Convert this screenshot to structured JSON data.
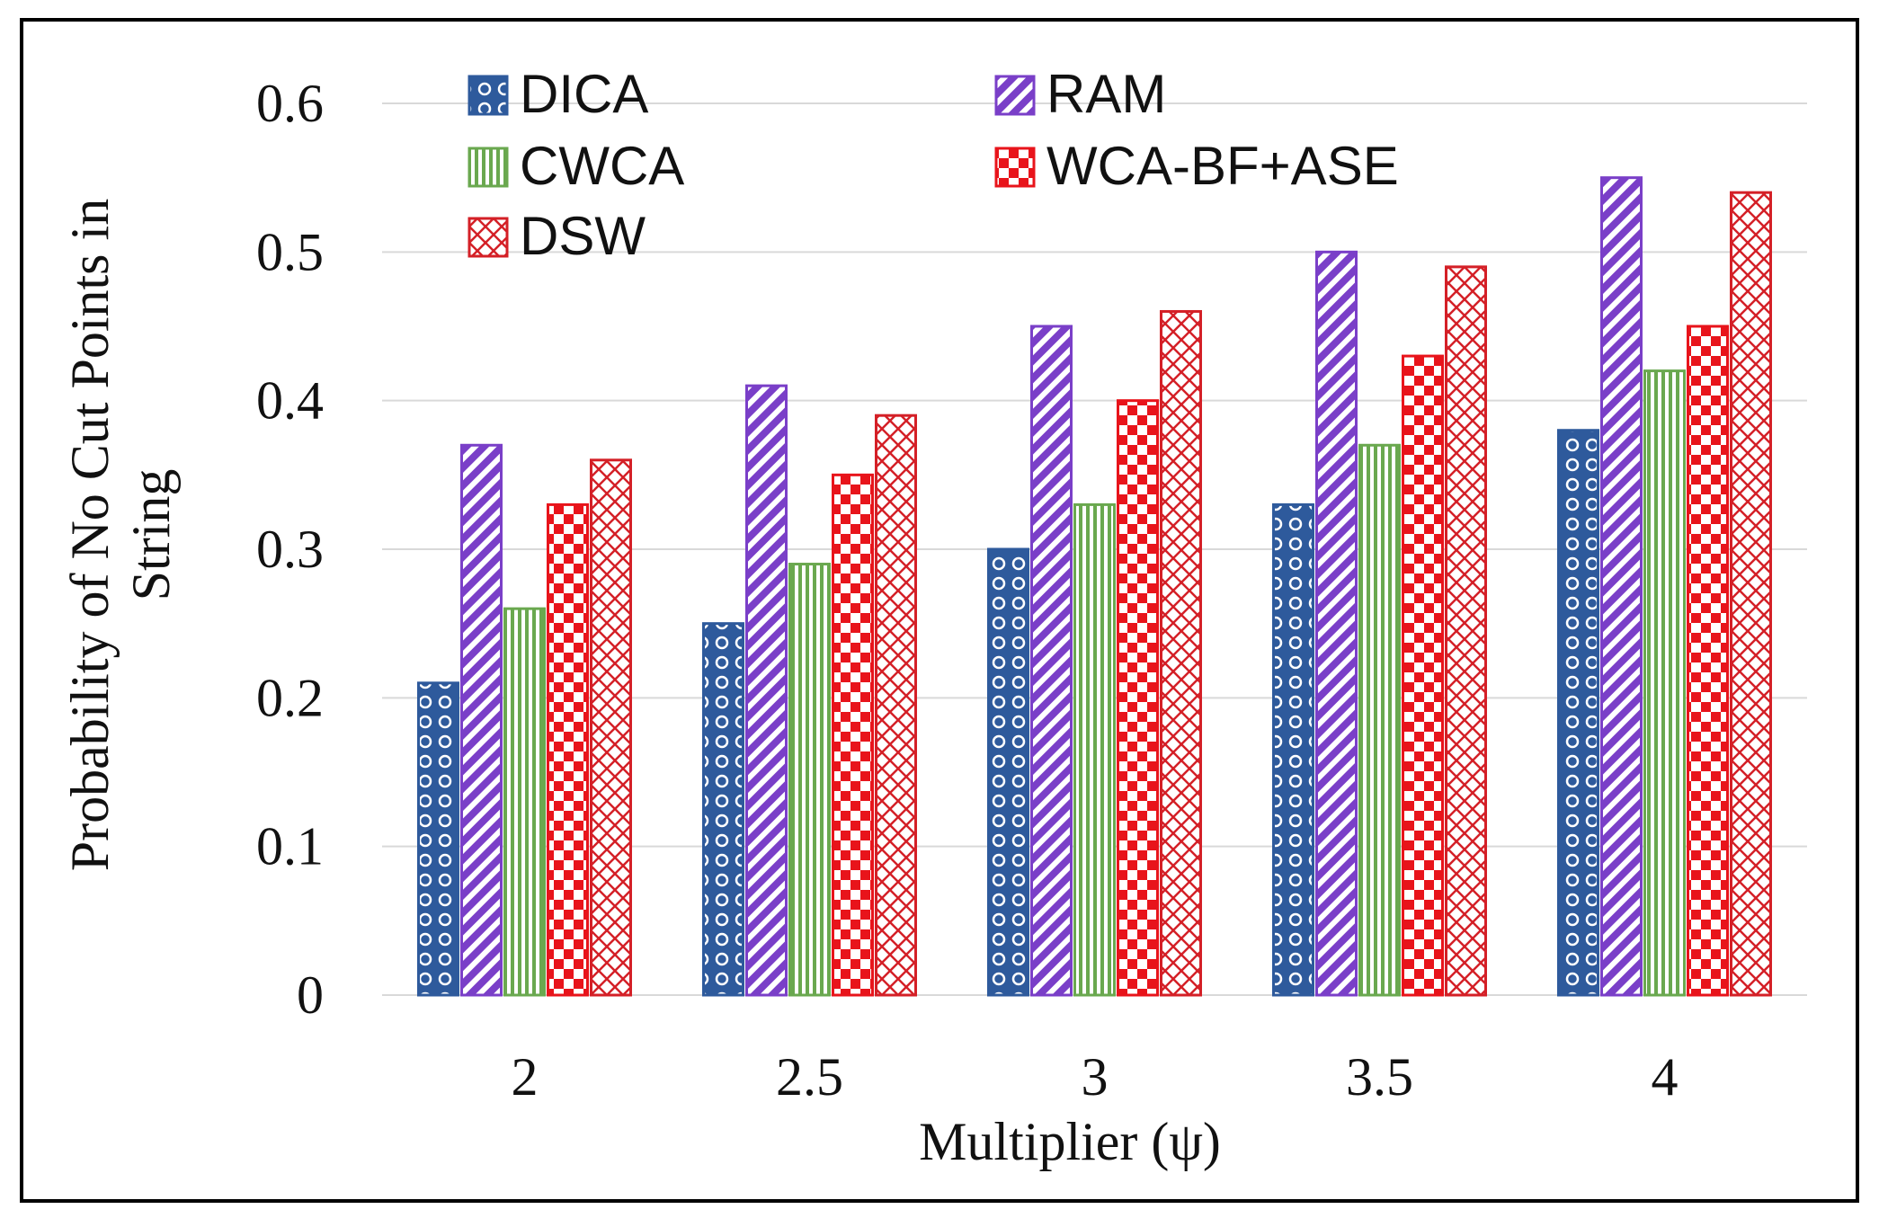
{
  "chart_data": {
    "type": "bar",
    "title": "",
    "xlabel": "Multiplier  (ψ)",
    "ylabel_lines": [
      "Probability of  No Cut Points in",
      "String"
    ],
    "categories": [
      "2",
      "2.5",
      "3",
      "3.5",
      "4"
    ],
    "ylim": [
      0,
      0.6
    ],
    "yticks": [
      "0",
      "0.1",
      "0.2",
      "0.3",
      "0.4",
      "0.5",
      "0.6"
    ],
    "grid": true,
    "legend_position": "top-left",
    "series": [
      {
        "name": "DICA",
        "color": "#2e5a9c",
        "pattern": "circles",
        "values": [
          0.21,
          0.25,
          0.3,
          0.33,
          0.38
        ]
      },
      {
        "name": "RAM",
        "color": "#7a3fc8",
        "pattern": "diagonal",
        "values": [
          0.37,
          0.41,
          0.45,
          0.5,
          0.55
        ]
      },
      {
        "name": "CWCA",
        "color": "#6aa84f",
        "pattern": "vertical",
        "values": [
          0.26,
          0.29,
          0.33,
          0.37,
          0.42
        ]
      },
      {
        "name": "WCA-BF+ASE",
        "color": "#e8141b",
        "pattern": "checker",
        "values": [
          0.33,
          0.35,
          0.4,
          0.43,
          0.45
        ]
      },
      {
        "name": "DSW",
        "color": "#d42027",
        "pattern": "crosshatch",
        "values": [
          0.36,
          0.39,
          0.46,
          0.49,
          0.54
        ]
      }
    ]
  }
}
